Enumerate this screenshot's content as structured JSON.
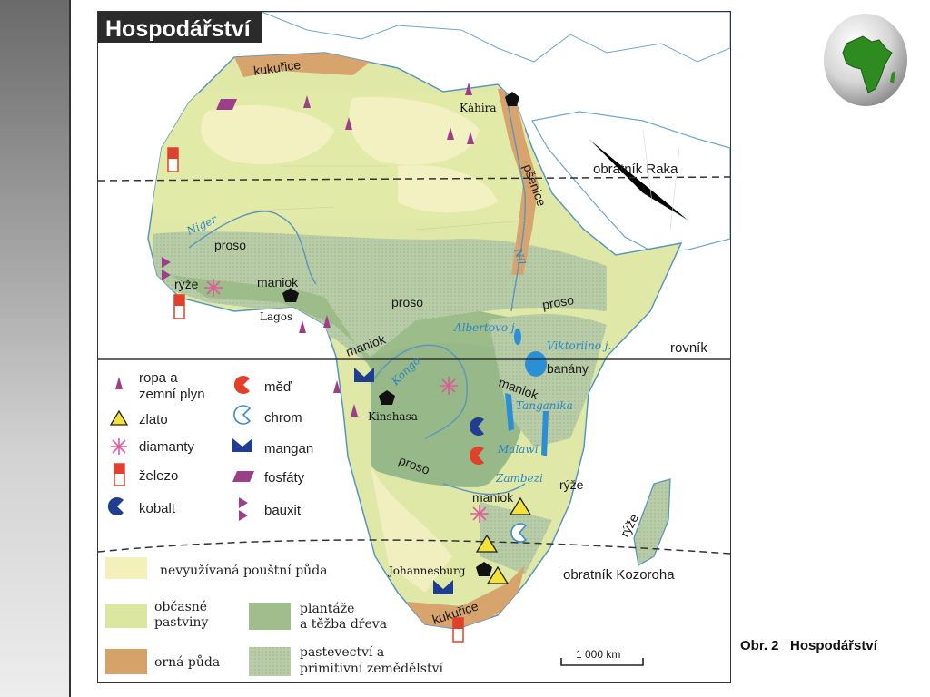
{
  "map": {
    "title": "Hospodářství",
    "lines": {
      "tropic_cancer": "obratník Raka",
      "equator": "rovník",
      "tropic_capricorn": "obratník Kozoroha"
    },
    "crops": [
      "kukuřice",
      "pšenice",
      "proso",
      "proso",
      "proso",
      "proso",
      "rýže",
      "maniok",
      "maniok",
      "maniok",
      "maniok",
      "banány",
      "rýže",
      "rýže",
      "kukuřice"
    ],
    "cities": {
      "cairo": "Káhira",
      "lagos": "Lagos",
      "kinshasa": "Kinshasa",
      "johannesburg": "Johannesburg"
    },
    "water": {
      "niger": "Niger",
      "nile": "Nil",
      "albert": "Albertovo j.",
      "victoria": "Viktoriino j.",
      "kongo": "Kongo",
      "tanganika": "Tanganika",
      "malawi": "Malawi",
      "zambezi": "Zambezi"
    },
    "scale": "1 000 km",
    "colors": {
      "desert": "#f4f0bc",
      "pasture": "#dbe6a0",
      "plantation": "#9fbe8c",
      "primitive": "#b6cca4",
      "arable": "#d5a36a",
      "sea": "#ffffff"
    }
  },
  "legend": {
    "oil_gas": [
      "ropa a",
      "zemní plyn"
    ],
    "gold": "zlato",
    "diamonds": "diamanty",
    "iron": "železo",
    "cobalt": "kobalt",
    "copper": "měď",
    "chrome": "chrom",
    "manganese": "mangan",
    "phosphates": "fosfáty",
    "bauxite": "bauxit",
    "desert_land": "nevyužívaná pouštní půda",
    "pastures": [
      "občasné",
      "pastviny"
    ],
    "plantations": [
      "plantáže",
      "a těžba dřeva"
    ],
    "arable": "orná půda",
    "primitive": [
      "pastevectví a",
      "primitivní zemědělství"
    ]
  },
  "caption": {
    "number": "Obr. 2",
    "title": "Hospodářství"
  },
  "icons": [
    "globe-icon",
    "oil-gas-icon",
    "gold-icon",
    "diamond-icon",
    "iron-icon",
    "cobalt-icon",
    "copper-icon",
    "chrome-icon",
    "manganese-icon",
    "phosphate-icon",
    "bauxite-icon",
    "city-icon"
  ]
}
